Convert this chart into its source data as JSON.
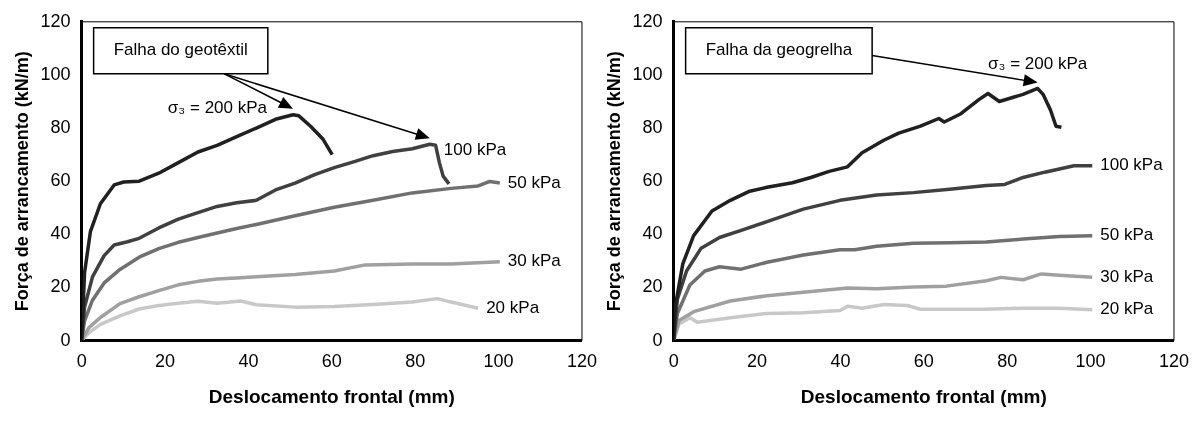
{
  "chart_data": [
    {
      "type": "line",
      "xlabel": "Deslocamento frontal (mm)",
      "ylabel": "Força de arrancamento (kN/m)",
      "xlim": [
        0,
        120
      ],
      "xticks": [
        0,
        20,
        40,
        60,
        80,
        100,
        120
      ],
      "ylim": [
        0,
        120
      ],
      "yticks": [
        0,
        20,
        40,
        60,
        80,
        100,
        120
      ],
      "annotations": [
        "Falha do geotêxtil"
      ],
      "series": [
        {
          "name": "σ₃ = 200 kPa",
          "color": "#202020",
          "x": [
            0,
            0.7,
            2.1,
            4.5,
            7.8,
            10.1,
            13.8,
            18.5,
            23.2,
            27.9,
            32.5,
            37.2,
            41.9,
            46.5,
            50.7,
            52.1,
            54.9,
            57.8,
            60.1
          ],
          "values": [
            0,
            25.5,
            41,
            51.5,
            58.6,
            59.7,
            60,
            63,
            67,
            71,
            73.5,
            76.8,
            80,
            83.3,
            85,
            84.6,
            80.7,
            76,
            70
          ]
        },
        {
          "name": "100 kPa",
          "color": "#404040",
          "x": [
            0,
            0.7,
            2.6,
            5.4,
            7.8,
            11,
            13.8,
            18.5,
            23.2,
            27.9,
            32.5,
            37.2,
            41.9,
            46.5,
            51.2,
            55.9,
            60.6,
            65.2,
            69.9,
            74.6,
            79.3,
            83.5,
            84.9,
            85.8,
            86.7,
            88.1
          ],
          "values": [
            0,
            12.6,
            24,
            32,
            36,
            37.2,
            38.5,
            42.4,
            45.7,
            48.2,
            50.5,
            51.9,
            52.8,
            56.7,
            59.3,
            62.5,
            65.1,
            67.3,
            69.6,
            71.2,
            72.2,
            73.9,
            73.5,
            67,
            61.9,
            59
          ]
        },
        {
          "name": "50 kPa",
          "color": "#707070",
          "x": [
            0,
            0.7,
            2.6,
            5.4,
            9.2,
            13.8,
            18.5,
            23.2,
            27.9,
            32.5,
            37.2,
            41.9,
            51.2,
            60.6,
            69.9,
            79.3,
            88.6,
            95.1,
            97.9,
            100.3
          ],
          "values": [
            0,
            7.4,
            15.2,
            21.7,
            26.8,
            31.4,
            34.6,
            37,
            38.8,
            40.5,
            42.2,
            43.7,
            47,
            50.2,
            52.8,
            55.6,
            57.3,
            58.2,
            59.9,
            59.3
          ]
        },
        {
          "name": "30 kPa",
          "color": "#a0a0a0",
          "x": [
            0,
            1.7,
            4.5,
            9.2,
            13.8,
            18.5,
            23.2,
            27.9,
            32.5,
            37.2,
            41.9,
            51.2,
            60.6,
            68,
            79.3,
            88.6,
            100.3
          ],
          "values": [
            0,
            4.8,
            8.7,
            13.9,
            16.5,
            18.8,
            21,
            22.3,
            23.2,
            23.6,
            24,
            24.9,
            26.2,
            28.5,
            28.8,
            28.8,
            29.7
          ]
        },
        {
          "name": "20 kPa",
          "color": "#c8c8c8",
          "x": [
            0,
            1.7,
            4.5,
            9.2,
            13.8,
            18.5,
            23.2,
            27.9,
            32.5,
            38.1,
            41.9,
            51.2,
            60.6,
            69.9,
            79.3,
            85.3,
            88.6,
            95.1
          ],
          "values": [
            0,
            2.9,
            6.1,
            9.3,
            11.9,
            13.2,
            14.1,
            14.8,
            14.1,
            14.9,
            13.5,
            12.6,
            12.8,
            13.6,
            14.5,
            15.8,
            14.5,
            12.2
          ]
        }
      ]
    },
    {
      "type": "line",
      "xlabel": "Deslocamento frontal (mm)",
      "ylabel": "Força de arrancamento (kN/m)",
      "xlim": [
        0,
        120
      ],
      "xticks": [
        0,
        20,
        40,
        60,
        80,
        100,
        120
      ],
      "ylim": [
        0,
        120
      ],
      "yticks": [
        0,
        20,
        40,
        60,
        80,
        100,
        120
      ],
      "annotations": [
        "Falha da geogrelha"
      ],
      "series": [
        {
          "name": "σ₃ = 200 kPa",
          "color": "#202020",
          "x": [
            0,
            0.4,
            2.2,
            4.8,
            9.2,
            13.6,
            18,
            22.4,
            28.5,
            32.9,
            37.3,
            41.7,
            45.2,
            50.4,
            54,
            59.2,
            63.6,
            64.9,
            68.9,
            73.2,
            75.4,
            78.1,
            81.1,
            83.8,
            87.3,
            88.6,
            90.4,
            91.7,
            93
          ],
          "values": [
            0,
            12.9,
            28.9,
            39.5,
            48.8,
            52.8,
            56.1,
            57.7,
            59.4,
            61.4,
            63.7,
            65.4,
            70.7,
            75.4,
            78.1,
            80.7,
            83.6,
            82.3,
            85.4,
            90.7,
            93,
            90,
            91.4,
            92.7,
            94.9,
            92.7,
            86.7,
            80.7,
            80.3
          ]
        },
        {
          "name": "100 kPa",
          "color": "#404040",
          "x": [
            0,
            0.9,
            3.1,
            6.6,
            11,
            16.2,
            22.4,
            31.1,
            39.9,
            48.7,
            57.5,
            66.2,
            75,
            79.4,
            83.8,
            89,
            96,
            100.4
          ],
          "values": [
            0,
            15.6,
            26.2,
            34.8,
            38.8,
            41.5,
            44.8,
            49.5,
            52.8,
            54.8,
            55.7,
            57,
            58.4,
            58.8,
            61.4,
            63.4,
            65.8,
            65.8
          ]
        },
        {
          "name": "50 kPa",
          "color": "#707070",
          "x": [
            0,
            0.9,
            3.9,
            7.5,
            11,
            16.2,
            22.4,
            31.1,
            39.9,
            43.4,
            48.7,
            57.5,
            66.2,
            75,
            83.8,
            92.5,
            100.4
          ],
          "values": [
            0,
            10.2,
            20.9,
            26.2,
            27.8,
            26.9,
            29.5,
            32.2,
            34.2,
            34.2,
            35.5,
            36.6,
            36.8,
            37.1,
            38.2,
            39.2,
            39.5
          ]
        },
        {
          "name": "30 kPa",
          "color": "#a0a0a0",
          "x": [
            0,
            1.3,
            4.8,
            13.6,
            22.4,
            31.1,
            41.7,
            48.7,
            57.5,
            65.4,
            75,
            78.5,
            83.8,
            88.2,
            92.5,
            100.4
          ],
          "values": [
            0,
            7.6,
            10.9,
            14.9,
            16.9,
            18.2,
            19.8,
            19.5,
            20.2,
            20.5,
            22.5,
            23.8,
            22.9,
            25.1,
            24.6,
            23.8
          ]
        },
        {
          "name": "20 kPa",
          "color": "#c8c8c8",
          "x": [
            0,
            1.3,
            3.9,
            5.7,
            13.6,
            22.4,
            31.1,
            39.9,
            41.7,
            45.2,
            50.4,
            56,
            59.2,
            66.2,
            75,
            83.8,
            92.5,
            100.4
          ],
          "values": [
            0,
            6.3,
            8.6,
            6.9,
            8.6,
            10.2,
            10.5,
            11.3,
            12.9,
            12.2,
            13.6,
            13.2,
            11.8,
            11.8,
            11.8,
            12.2,
            12.2,
            11.6
          ]
        }
      ]
    }
  ]
}
